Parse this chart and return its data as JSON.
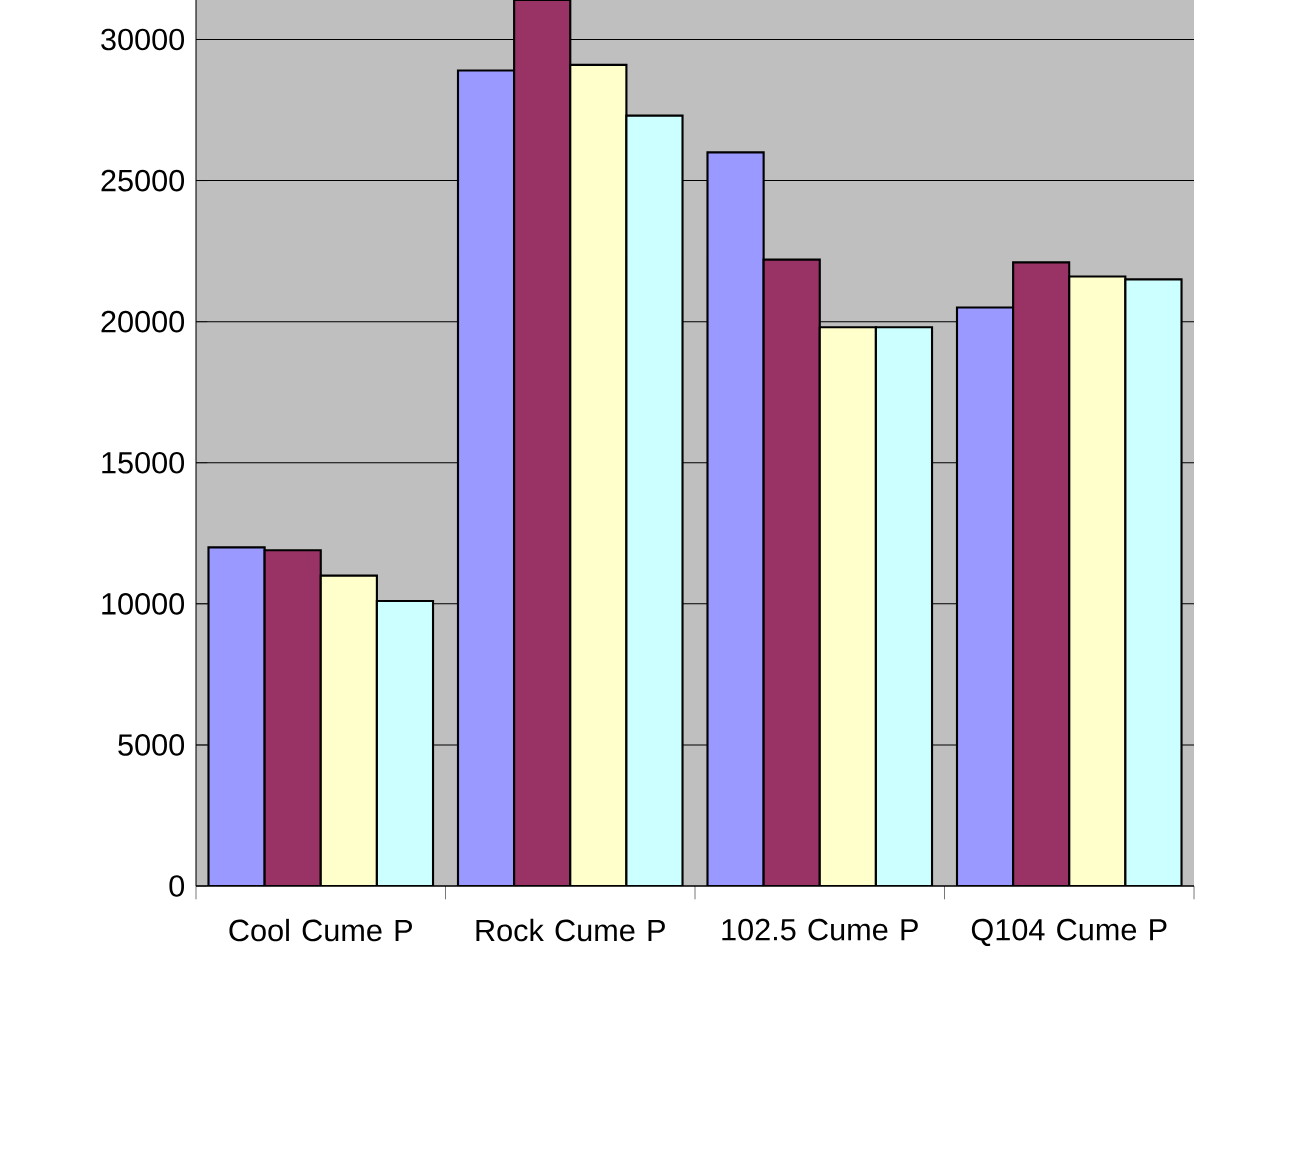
{
  "chart_data": {
    "type": "bar",
    "categories": [
      "Cool Cume P",
      "Rock Cume P",
      "102.5 Cume P",
      "Q104 Cume P"
    ],
    "series": [
      {
        "color": "#9999ff",
        "values": [
          12000,
          28900,
          26000,
          20500
        ]
      },
      {
        "color": "#993366",
        "values": [
          11900,
          31400,
          22200,
          22100
        ]
      },
      {
        "color": "#ffffcc",
        "values": [
          11000,
          29100,
          19800,
          21600
        ]
      },
      {
        "color": "#ccffff",
        "values": [
          10100,
          27300,
          19800,
          21500
        ]
      }
    ],
    "ylim": [
      0,
      31400
    ],
    "yticks": [
      0,
      5000,
      10000,
      15000,
      20000,
      25000,
      30000
    ],
    "grid": "y"
  }
}
